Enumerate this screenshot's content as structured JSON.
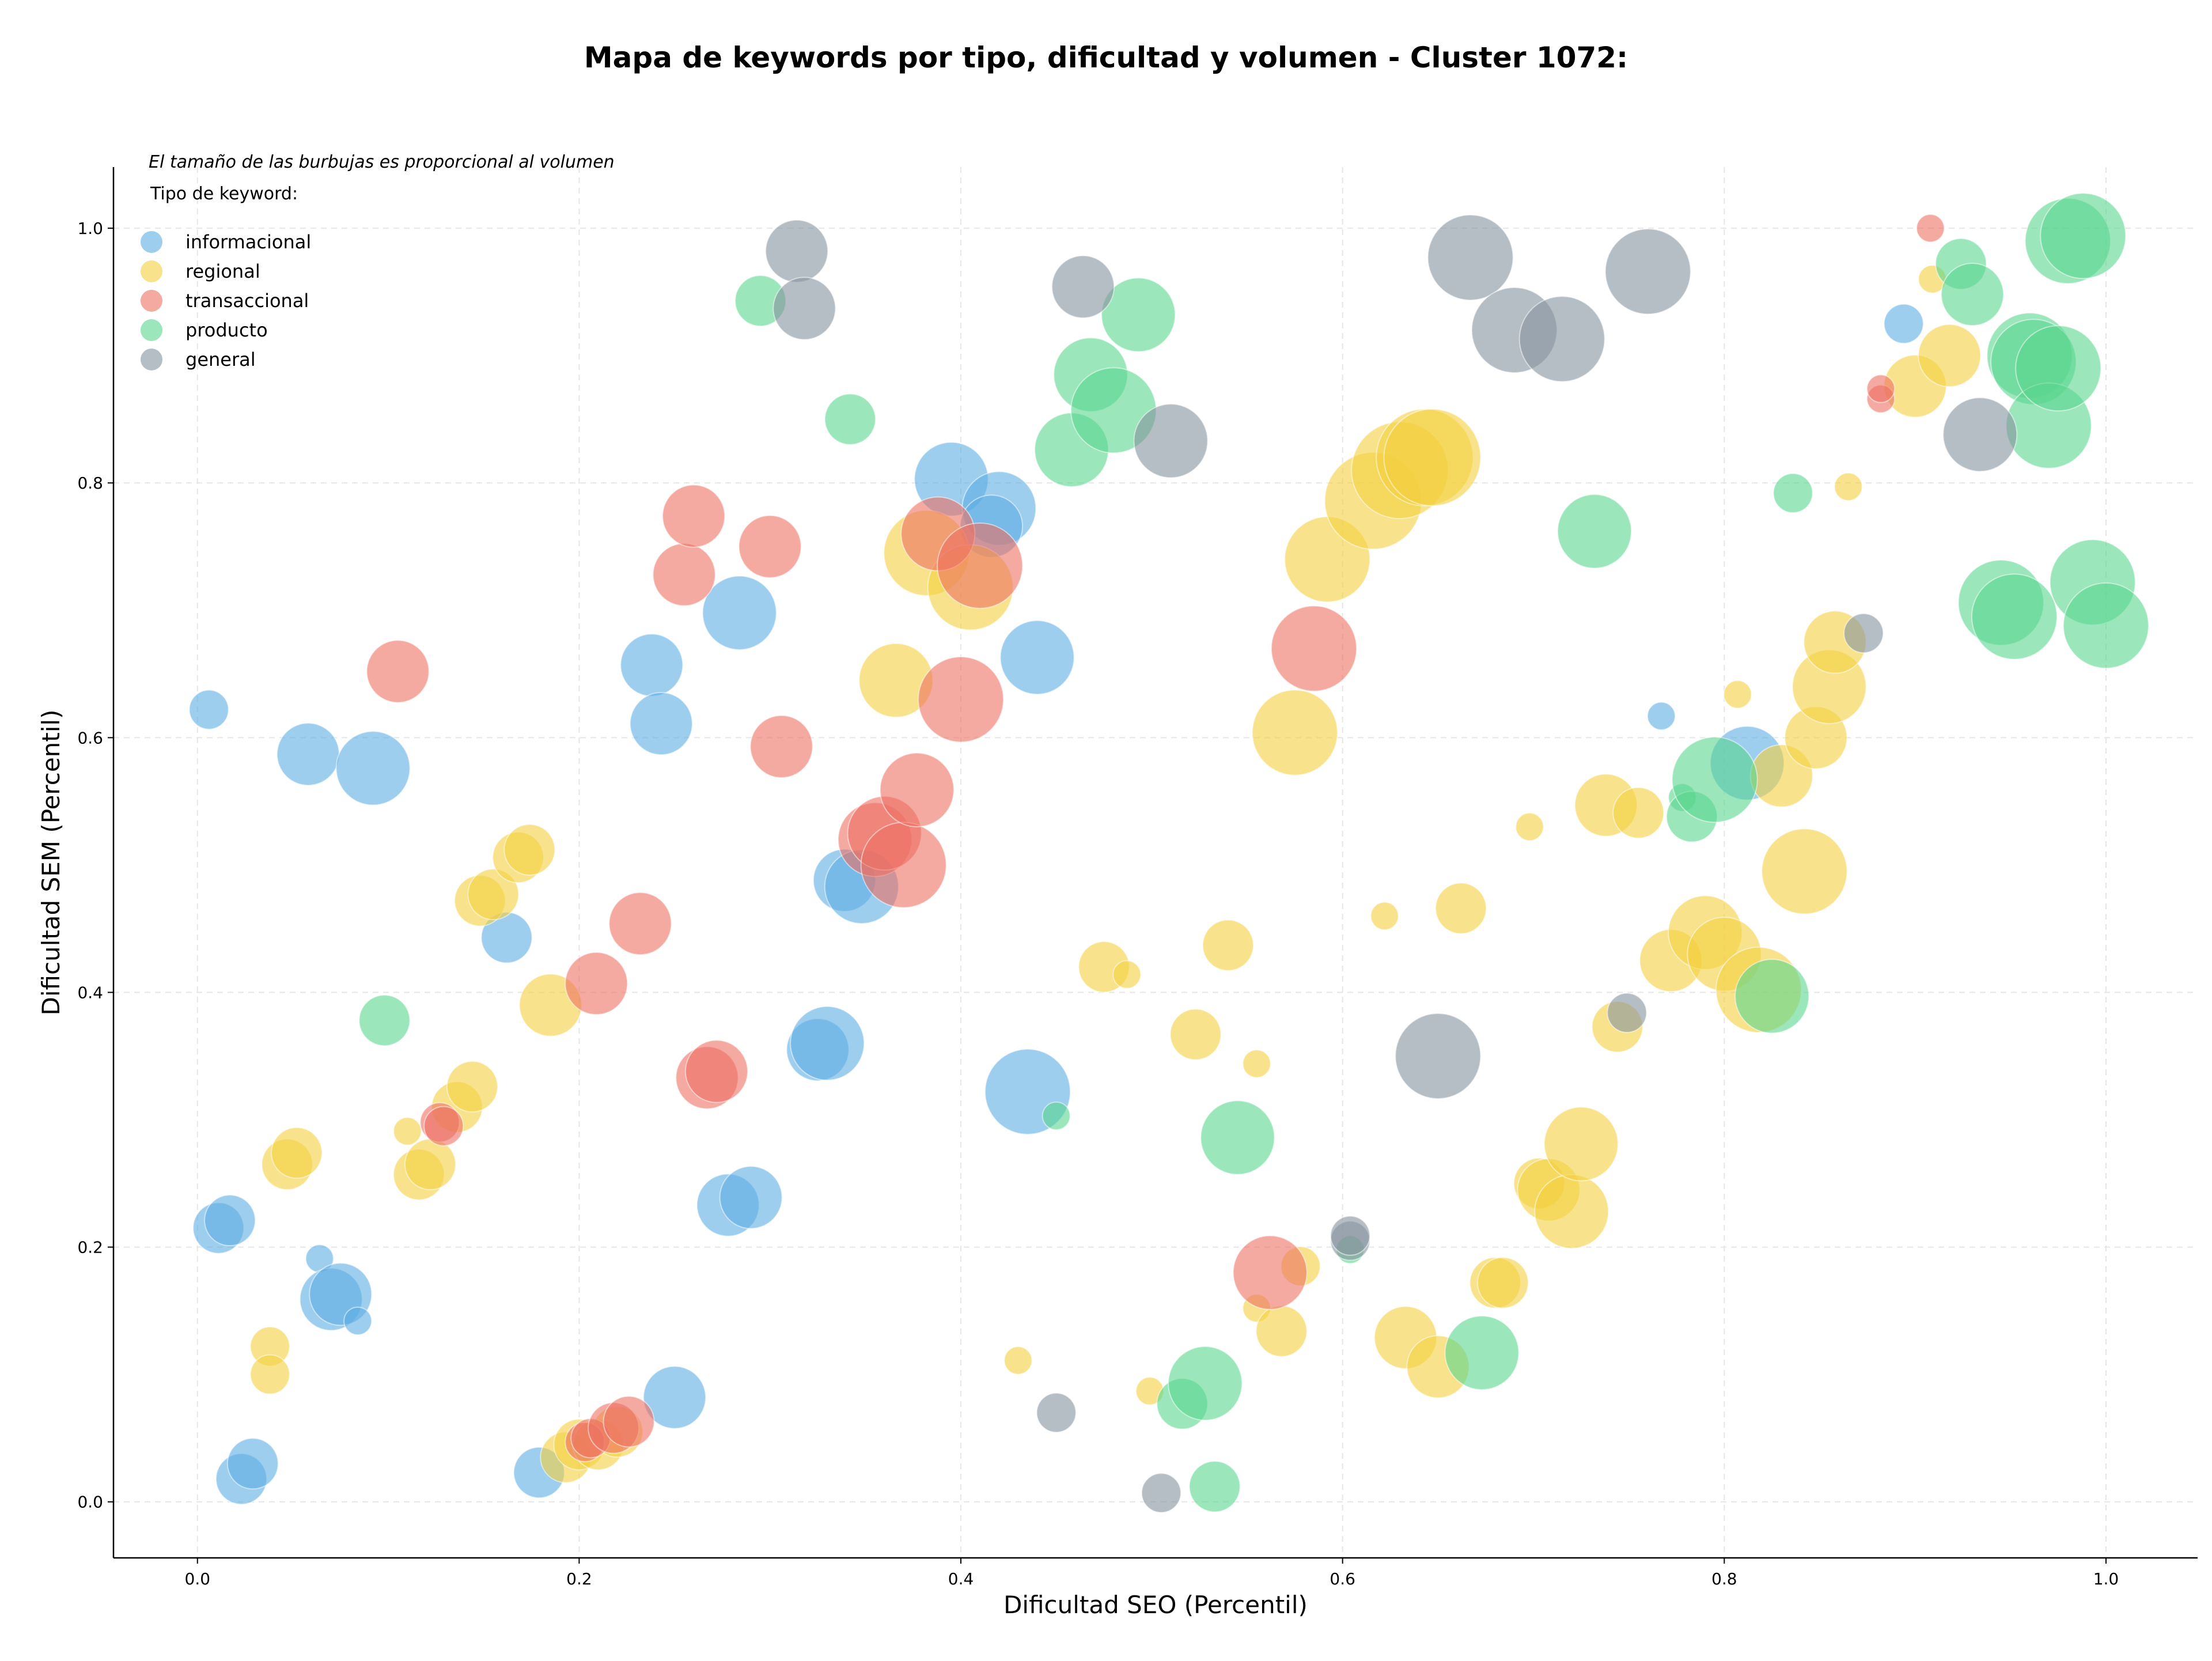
{
  "chart_data": {
    "type": "scatter",
    "title": "Mapa de keywords por tipo, dificultad y volumen - Cluster 1072:",
    "subtitle": "El tamaño de las burbujas es proporcional al volumen",
    "xlabel": "Dificultad SEO (Percentil)",
    "ylabel": "Dificultad SEM (Percentil)",
    "xlim": [
      -0.044,
      1.048
    ],
    "ylim": [
      -0.044,
      1.048
    ],
    "xticks": [
      "0.0",
      "0.2",
      "0.4",
      "0.6",
      "0.8",
      "1.0"
    ],
    "yticks": [
      "0.0",
      "0.2",
      "0.4",
      "0.6",
      "0.8",
      "1.0"
    ],
    "grid": true,
    "legend": {
      "title": "Tipo de keyword:",
      "position": "top-left"
    },
    "size_encoding": "volume",
    "series": [
      {
        "name": "informacional",
        "color": "#5DADE2",
        "points": [
          [
            0.006,
            0.622,
            2
          ],
          [
            0.058,
            0.587,
            4
          ],
          [
            0.092,
            0.576,
            5
          ],
          [
            0.011,
            0.215,
            3
          ],
          [
            0.017,
            0.221,
            3
          ],
          [
            0.064,
            0.191,
            1
          ],
          [
            0.07,
            0.159,
            4
          ],
          [
            0.075,
            0.163,
            4
          ],
          [
            0.084,
            0.142,
            1
          ],
          [
            0.023,
            0.018,
            3
          ],
          [
            0.029,
            0.03,
            3
          ],
          [
            0.162,
            0.443,
            3
          ],
          [
            0.238,
            0.657,
            4
          ],
          [
            0.243,
            0.611,
            4
          ],
          [
            0.284,
            0.698,
            5
          ],
          [
            0.179,
            0.023,
            3
          ],
          [
            0.25,
            0.082,
            4
          ],
          [
            0.278,
            0.233,
            4
          ],
          [
            0.29,
            0.239,
            4
          ],
          [
            0.325,
            0.355,
            4
          ],
          [
            0.33,
            0.36,
            5
          ],
          [
            0.339,
            0.488,
            4
          ],
          [
            0.348,
            0.483,
            5
          ],
          [
            0.395,
            0.803,
            5
          ],
          [
            0.42,
            0.78,
            5
          ],
          [
            0.416,
            0.766,
            4
          ],
          [
            0.44,
            0.663,
            5
          ],
          [
            0.435,
            0.322,
            6
          ],
          [
            0.767,
            0.617,
            1
          ],
          [
            0.812,
            0.58,
            5
          ],
          [
            0.894,
            0.925,
            2
          ]
        ]
      },
      {
        "name": "regional",
        "color": "#F4D03F",
        "points": [
          [
            0.038,
            0.122,
            2
          ],
          [
            0.038,
            0.1,
            2
          ],
          [
            0.047,
            0.265,
            3
          ],
          [
            0.052,
            0.274,
            3
          ],
          [
            0.11,
            0.291,
            1
          ],
          [
            0.116,
            0.257,
            3
          ],
          [
            0.122,
            0.265,
            3
          ],
          [
            0.136,
            0.31,
            3
          ],
          [
            0.144,
            0.326,
            3
          ],
          [
            0.148,
            0.472,
            3
          ],
          [
            0.155,
            0.477,
            3
          ],
          [
            0.168,
            0.506,
            3
          ],
          [
            0.174,
            0.512,
            3
          ],
          [
            0.185,
            0.39,
            4
          ],
          [
            0.193,
            0.035,
            3
          ],
          [
            0.2,
            0.045,
            3
          ],
          [
            0.21,
            0.045,
            3
          ],
          [
            0.22,
            0.055,
            3
          ],
          [
            0.366,
            0.645,
            5
          ],
          [
            0.382,
            0.745,
            6
          ],
          [
            0.405,
            0.718,
            6
          ],
          [
            0.475,
            0.42,
            3
          ],
          [
            0.487,
            0.414,
            1
          ],
          [
            0.43,
            0.111,
            1
          ],
          [
            0.499,
            0.087,
            1
          ],
          [
            0.523,
            0.367,
            3
          ],
          [
            0.54,
            0.437,
            3
          ],
          [
            0.555,
            0.344,
            1
          ],
          [
            0.555,
            0.152,
            1
          ],
          [
            0.568,
            0.134,
            3
          ],
          [
            0.578,
            0.185,
            2
          ],
          [
            0.575,
            0.604,
            6
          ],
          [
            0.592,
            0.74,
            6
          ],
          [
            0.616,
            0.786,
            7
          ],
          [
            0.63,
            0.81,
            7
          ],
          [
            0.643,
            0.82,
            7
          ],
          [
            0.647,
            0.82,
            7
          ],
          [
            0.622,
            0.46,
            1
          ],
          [
            0.633,
            0.129,
            4
          ],
          [
            0.65,
            0.106,
            4
          ],
          [
            0.662,
            0.466,
            3
          ],
          [
            0.68,
            0.172,
            3
          ],
          [
            0.684,
            0.172,
            3
          ],
          [
            0.698,
            0.53,
            1
          ],
          [
            0.703,
            0.25,
            3
          ],
          [
            0.708,
            0.245,
            4
          ],
          [
            0.72,
            0.228,
            5
          ],
          [
            0.725,
            0.281,
            5
          ],
          [
            0.738,
            0.547,
            4
          ],
          [
            0.744,
            0.373,
            3
          ],
          [
            0.755,
            0.541,
            3
          ],
          [
            0.772,
            0.425,
            4
          ],
          [
            0.79,
            0.447,
            5
          ],
          [
            0.8,
            0.43,
            5
          ],
          [
            0.807,
            0.634,
            1
          ],
          [
            0.818,
            0.402,
            6
          ],
          [
            0.83,
            0.57,
            4
          ],
          [
            0.842,
            0.495,
            6
          ],
          [
            0.848,
            0.6,
            4
          ],
          [
            0.855,
            0.64,
            5
          ],
          [
            0.858,
            0.675,
            4
          ],
          [
            0.865,
            0.797,
            1
          ],
          [
            0.9,
            0.876,
            4
          ],
          [
            0.909,
            0.96,
            1
          ],
          [
            0.918,
            0.9,
            4
          ]
        ]
      },
      {
        "name": "transaccional",
        "color": "#EC7063",
        "points": [
          [
            0.105,
            0.652,
            4
          ],
          [
            0.127,
            0.298,
            2
          ],
          [
            0.129,
            0.295,
            2
          ],
          [
            0.203,
            0.047,
            2
          ],
          [
            0.206,
            0.05,
            2
          ],
          [
            0.218,
            0.058,
            3
          ],
          [
            0.226,
            0.063,
            3
          ],
          [
            0.209,
            0.407,
            4
          ],
          [
            0.232,
            0.454,
            4
          ],
          [
            0.255,
            0.728,
            4
          ],
          [
            0.26,
            0.774,
            4
          ],
          [
            0.267,
            0.333,
            4
          ],
          [
            0.272,
            0.338,
            4
          ],
          [
            0.3,
            0.75,
            4
          ],
          [
            0.306,
            0.593,
            4
          ],
          [
            0.355,
            0.52,
            5
          ],
          [
            0.36,
            0.525,
            5
          ],
          [
            0.37,
            0.5,
            6
          ],
          [
            0.377,
            0.559,
            5
          ],
          [
            0.388,
            0.76,
            5
          ],
          [
            0.4,
            0.63,
            6
          ],
          [
            0.41,
            0.735,
            6
          ],
          [
            0.562,
            0.18,
            5
          ],
          [
            0.585,
            0.67,
            6
          ],
          [
            0.882,
            0.866,
            1
          ],
          [
            0.882,
            0.874,
            1
          ],
          [
            0.908,
            1.0,
            1
          ]
        ]
      },
      {
        "name": "producto",
        "color": "#58D68D",
        "points": [
          [
            0.098,
            0.378,
            3
          ],
          [
            0.295,
            0.943,
            3
          ],
          [
            0.342,
            0.85,
            3
          ],
          [
            0.45,
            0.303,
            1
          ],
          [
            0.458,
            0.826,
            5
          ],
          [
            0.468,
            0.885,
            5
          ],
          [
            0.48,
            0.857,
            6
          ],
          [
            0.493,
            0.932,
            5
          ],
          [
            0.516,
            0.077,
            3
          ],
          [
            0.528,
            0.093,
            5
          ],
          [
            0.533,
            0.012,
            3
          ],
          [
            0.545,
            0.286,
            5
          ],
          [
            0.604,
            0.198,
            1
          ],
          [
            0.673,
            0.117,
            5
          ],
          [
            0.732,
            0.762,
            5
          ],
          [
            0.778,
            0.553,
            1
          ],
          [
            0.783,
            0.538,
            3
          ],
          [
            0.795,
            0.567,
            6
          ],
          [
            0.825,
            0.397,
            5
          ],
          [
            0.836,
            0.792,
            2
          ],
          [
            0.924,
            0.972,
            3
          ],
          [
            0.93,
            0.948,
            4
          ],
          [
            0.945,
            0.706,
            6
          ],
          [
            0.952,
            0.695,
            6
          ],
          [
            0.96,
            0.9,
            6
          ],
          [
            0.962,
            0.895,
            6
          ],
          [
            0.97,
            0.845,
            6
          ],
          [
            0.975,
            0.89,
            6
          ],
          [
            0.98,
            0.99,
            6
          ],
          [
            0.988,
            0.994,
            6
          ],
          [
            0.993,
            0.722,
            6
          ],
          [
            1.0,
            0.688,
            6
          ]
        ]
      },
      {
        "name": "general",
        "color": "#85929E",
        "points": [
          [
            0.314,
            0.982,
            4
          ],
          [
            0.318,
            0.937,
            4
          ],
          [
            0.464,
            0.954,
            4
          ],
          [
            0.51,
            0.833,
            5
          ],
          [
            0.45,
            0.07,
            2
          ],
          [
            0.505,
            0.007,
            2
          ],
          [
            0.604,
            0.205,
            2
          ],
          [
            0.604,
            0.209,
            2
          ],
          [
            0.65,
            0.35,
            6
          ],
          [
            0.667,
            0.977,
            6
          ],
          [
            0.69,
            0.92,
            6
          ],
          [
            0.715,
            0.913,
            6
          ],
          [
            0.76,
            0.966,
            6
          ],
          [
            0.749,
            0.384,
            2
          ],
          [
            0.873,
            0.682,
            2
          ],
          [
            0.934,
            0.838,
            5
          ]
        ]
      }
    ]
  }
}
